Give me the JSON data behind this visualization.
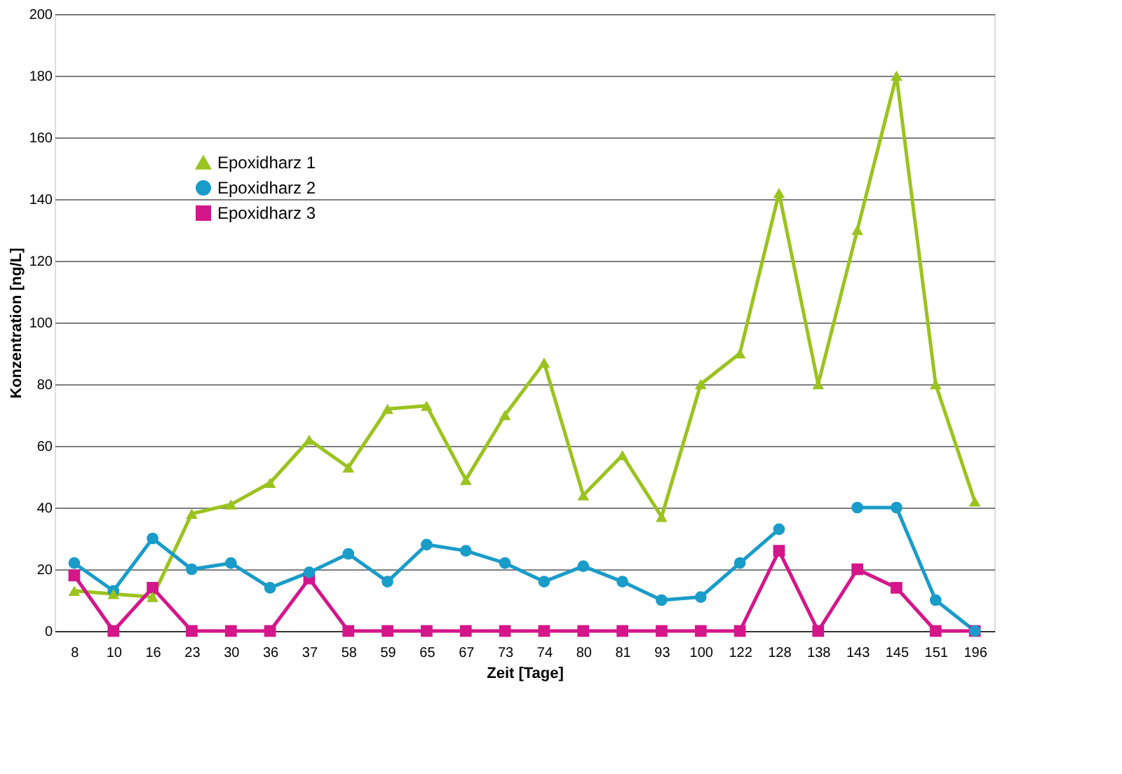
{
  "chart_data": {
    "type": "line",
    "xlabel": "Zeit [Tage]",
    "ylabel": "Konzentration [ng/L]",
    "categories": [
      "8",
      "10",
      "16",
      "23",
      "30",
      "36",
      "37",
      "58",
      "59",
      "65",
      "67",
      "73",
      "74",
      "80",
      "81",
      "93",
      "100",
      "122",
      "128",
      "138",
      "143",
      "145",
      "151",
      "196"
    ],
    "series": [
      {
        "name": "Epoxidharz 1",
        "color": "#9bc31f",
        "marker": "triangle",
        "values": [
          13,
          12,
          11,
          38,
          41,
          48,
          62,
          53,
          72,
          73,
          49,
          70,
          87,
          44,
          57,
          37,
          80,
          90,
          142,
          80,
          130,
          180,
          80,
          42
        ]
      },
      {
        "name": "Epoxidharz 2",
        "color": "#1a9cc9",
        "marker": "circle",
        "values": [
          22,
          13,
          30,
          20,
          22,
          14,
          19,
          25,
          16,
          28,
          26,
          22,
          16,
          21,
          16,
          10,
          11,
          22,
          33,
          null,
          40,
          40,
          10,
          0
        ]
      },
      {
        "name": "Epoxidharz 3",
        "color": "#d4168a",
        "marker": "square",
        "values": [
          18,
          0,
          14,
          0,
          0,
          0,
          17,
          0,
          0,
          0,
          0,
          0,
          0,
          0,
          0,
          0,
          0,
          0,
          26,
          0,
          20,
          14,
          0,
          0
        ]
      }
    ],
    "ylim": [
      0,
      200
    ],
    "yticks": [
      0,
      20,
      40,
      60,
      80,
      100,
      120,
      140,
      160,
      180,
      200
    ],
    "grid": "y",
    "legend": "top left",
    "line_style": "solid"
  }
}
